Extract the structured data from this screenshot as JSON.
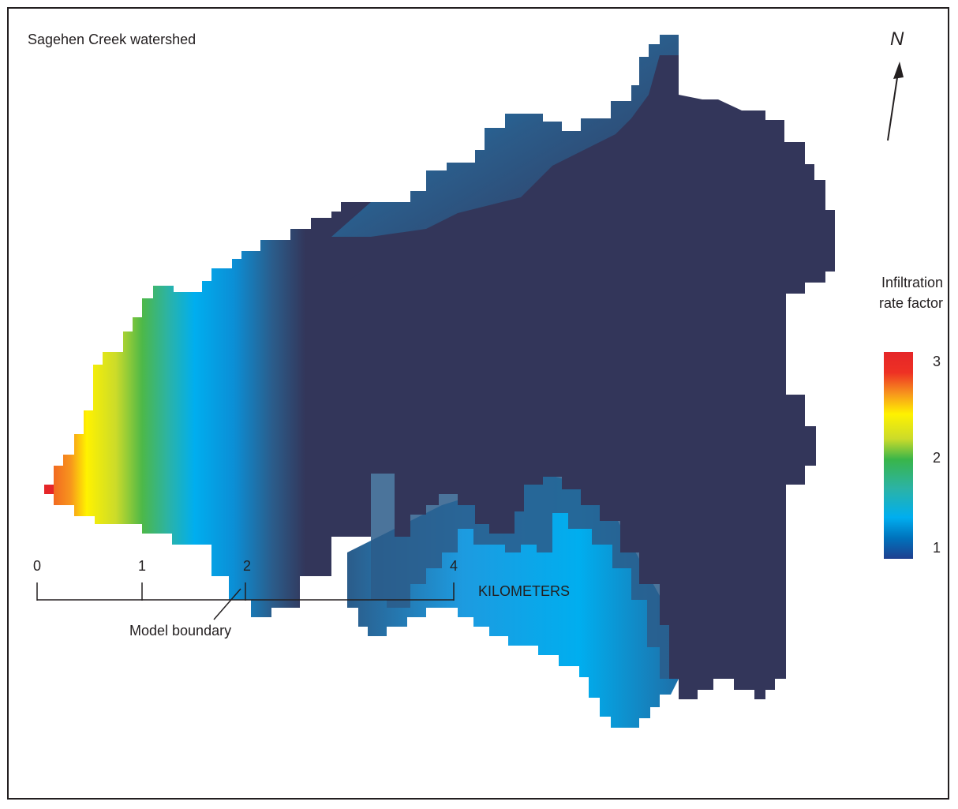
{
  "title": "Sagehen Creek watershed",
  "north_label": "N",
  "legend": {
    "title_line1": "Infiltration",
    "title_line2": "rate factor",
    "ticks": [
      "3",
      "2",
      "1"
    ],
    "colors": [
      "#e52629",
      "#f26b21",
      "#f7941d",
      "#fff200",
      "#cbdb2a",
      "#39b54a",
      "#2bb3a6",
      "#00aeef",
      "#0072bc",
      "#1e3f8f"
    ]
  },
  "annotation": "Model boundary",
  "scale_bar": {
    "labels": [
      "0",
      "1",
      "2",
      "4"
    ],
    "units": "KILOMETERS"
  },
  "colors": {
    "dark_zone": "#33365a",
    "mid_blue": "#2b5c8a",
    "bright_blue": "#00aeef"
  }
}
